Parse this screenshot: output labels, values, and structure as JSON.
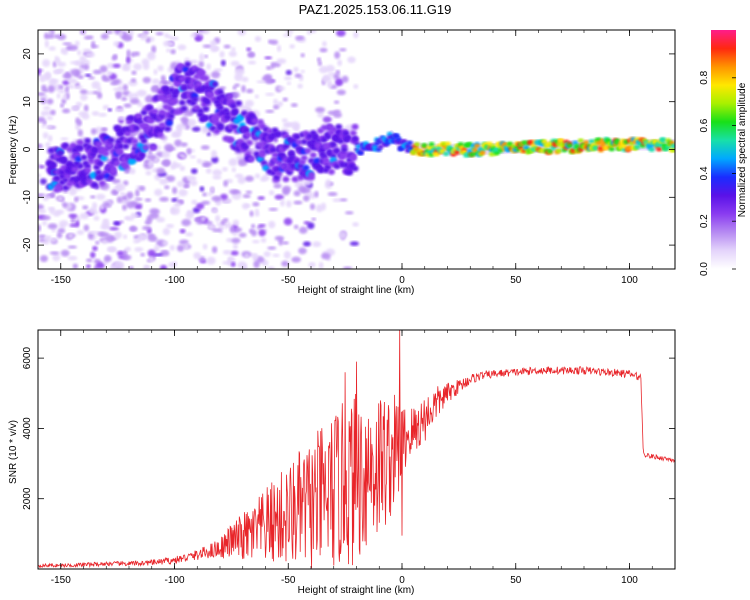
{
  "title": "PAZ1.2025.153.06.11.G19",
  "colors": {
    "snr_line": "#e8252a",
    "spectrogram_scale": [
      "#ffffff",
      "#e4d4fb",
      "#b68af2",
      "#8a3cf0",
      "#5a12e8",
      "#1a2cff",
      "#00a8ff",
      "#18e0a8",
      "#18e018",
      "#a8f000",
      "#ffe800",
      "#ff9400",
      "#ff2810",
      "#ff1c8a"
    ]
  },
  "chart_data": [
    {
      "type": "heatmap",
      "title": "PAZ1.2025.153.06.11.G19",
      "xlabel": "Height of straight line (km)",
      "ylabel": "Frequency (Hz)",
      "xlim": [
        -160,
        120
      ],
      "ylim": [
        -25,
        25
      ],
      "xticks": [
        -150,
        -100,
        -50,
        0,
        50,
        100
      ],
      "yticks": [
        -20,
        -10,
        0,
        10,
        20
      ],
      "colorbar": {
        "label": "Normalized spectral amplitude",
        "range": [
          0,
          1
        ],
        "ticks": [
          "0.0",
          "0.2",
          "0.4",
          "0.6",
          "0.8"
        ]
      },
      "ridge": {
        "description_points": [
          {
            "x": -145,
            "y": -4
          },
          {
            "x": -130,
            "y": -2
          },
          {
            "x": -110,
            "y": 5
          },
          {
            "x": -95,
            "y": 14
          },
          {
            "x": -85,
            "y": 10
          },
          {
            "x": -70,
            "y": 4
          },
          {
            "x": -60,
            "y": 0
          },
          {
            "x": -50,
            "y": -2
          },
          {
            "x": -40,
            "y": -1
          },
          {
            "x": -30,
            "y": 0
          },
          {
            "x": -20,
            "y": 0
          },
          {
            "x": -10,
            "y": 1
          },
          {
            "x": -5,
            "y": 3
          },
          {
            "x": 0,
            "y": 1
          },
          {
            "x": 10,
            "y": 0
          },
          {
            "x": 30,
            "y": 0
          },
          {
            "x": 60,
            "y": 0.5
          },
          {
            "x": 90,
            "y": 1
          },
          {
            "x": 120,
            "y": 1
          }
        ]
      }
    },
    {
      "type": "line",
      "xlabel": "Height of straight line (km)",
      "ylabel": "SNR (10 * v/v)",
      "xlim": [
        -160,
        120
      ],
      "ylim": [
        0,
        6800
      ],
      "xticks": [
        -150,
        -100,
        -50,
        0,
        50,
        100
      ],
      "yticks": [
        2000,
        4000,
        6000
      ],
      "series": [
        {
          "x": [
            -160,
            -150,
            -140,
            -130,
            -120,
            -110,
            -100,
            -90,
            -85,
            -80,
            -75,
            -70,
            -65,
            -60,
            -55,
            -50,
            -45,
            -40,
            -35,
            -30,
            -25,
            -20,
            -15,
            -10,
            -5,
            -1,
            0,
            5,
            10,
            15,
            20,
            25,
            30,
            35,
            40,
            50,
            60,
            70,
            80,
            90,
            100,
            105,
            106,
            107,
            110,
            115,
            120
          ],
          "values": [
            100,
            100,
            120,
            150,
            150,
            180,
            250,
            400,
            500,
            600,
            800,
            900,
            1000,
            1200,
            1400,
            1500,
            1700,
            1800,
            2000,
            2200,
            2400,
            2600,
            2900,
            3000,
            3200,
            3500,
            3700,
            3900,
            4300,
            4700,
            5000,
            5200,
            5400,
            5500,
            5550,
            5600,
            5650,
            5650,
            5650,
            5600,
            5550,
            5450,
            3400,
            3250,
            3200,
            3150,
            3100
          ],
          "noise_amplitude": [
            50,
            50,
            60,
            60,
            70,
            80,
            100,
            150,
            200,
            300,
            500,
            700,
            900,
            1100,
            1300,
            1500,
            1700,
            1900,
            2100,
            2300,
            2400,
            2500,
            2400,
            2200,
            1800,
            1500,
            1000,
            800,
            700,
            500,
            300,
            200,
            150,
            120,
            110,
            110,
            110,
            110,
            110,
            110,
            110,
            100,
            80,
            70,
            70,
            70,
            70
          ],
          "spikes": [
            {
              "x": -1,
              "y": 6800
            },
            {
              "x": -20,
              "y": 5900
            },
            {
              "x": -25,
              "y": 5600
            },
            {
              "x": 0,
              "y": 950
            }
          ]
        }
      ]
    }
  ]
}
